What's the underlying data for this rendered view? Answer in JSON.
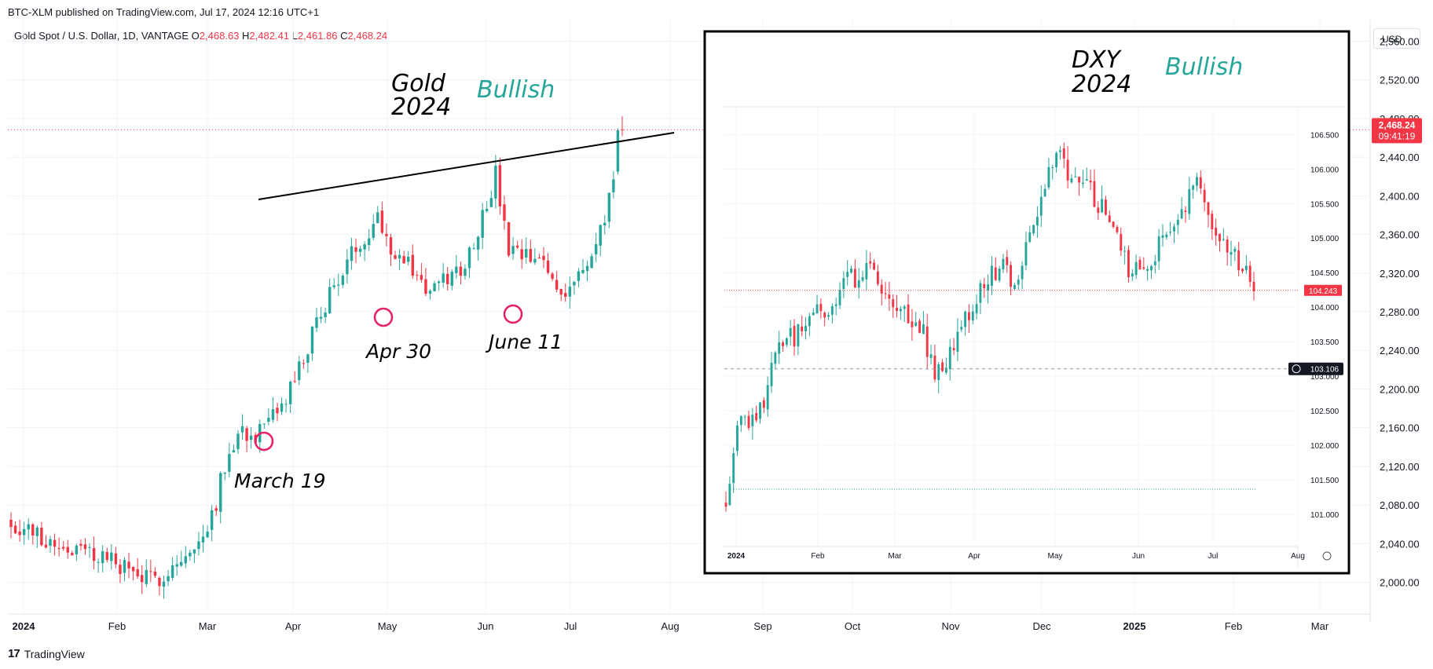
{
  "publisher_line": "BTC-XLM published on TradingView.com, Jul 17, 2024 12:16 UTC+1",
  "header": {
    "symbol": "Gold Spot / U.S. Dollar, 1D, VANTAGE",
    "o_label": "O",
    "o_value": "2,468.63",
    "h_label": "H",
    "h_value": "2,482.41",
    "l_label": "L",
    "l_value": "2,461.86",
    "c_label": "C",
    "c_value": "2,468.24"
  },
  "currency_button": "USD",
  "footer": {
    "brand": "TradingView",
    "mark": "17"
  },
  "colors": {
    "up": "#26a69a",
    "down": "#f23645",
    "teal_text": "#26a69a",
    "circle": "#e91e63",
    "price_tag": "#f23645",
    "dark_tag": "#131722"
  },
  "chart_data": [
    {
      "type": "candlestick",
      "instrument": "Gold Spot / U.S. Dollar",
      "x_axis_ticks": [
        "2024",
        "Feb",
        "Mar",
        "Apr",
        "May",
        "Jun",
        "Jul",
        "Aug",
        "Sep",
        "Oct",
        "Nov",
        "Dec",
        "2025",
        "Feb",
        "Mar"
      ],
      "y_axis_ticks": [
        "2,560.00",
        "2,520.00",
        "2,480.00",
        "2,440.00",
        "2,400.00",
        "2,360.00",
        "2,320.00",
        "2,280.00",
        "2,240.00",
        "2,200.00",
        "2,160.00",
        "2,120.00",
        "2,080.00",
        "2,040.00",
        "2,000.00"
      ],
      "ylim": [
        1985,
        2575
      ],
      "last_price": "2,468.24",
      "countdown": "09:41:19",
      "x": [
        "2024-01",
        "2024-02",
        "2024-03",
        "2024-03-19",
        "2024-04",
        "2024-04-30",
        "2024-05",
        "2024-06",
        "2024-06-11",
        "2024-07",
        "2024-07-17"
      ],
      "close": [
        2063,
        2040,
        2082,
        2157,
        2250,
        2298,
        2330,
        2327,
        2305,
        2330,
        2468
      ],
      "annotations": {
        "title_line1": "Gold",
        "title_line2": "2024",
        "bias": "Bullish",
        "points": [
          "March 19",
          "Apr 30",
          "June 11"
        ]
      },
      "resistance_line": {
        "from": [
          "2024-03-26",
          2444
        ],
        "to": [
          "2024-08-01",
          2490
        ]
      }
    },
    {
      "type": "candlestick",
      "instrument": "DXY",
      "x_axis_ticks": [
        "2024",
        "Feb",
        "Mar",
        "Apr",
        "May",
        "Jun",
        "Jul",
        "Aug"
      ],
      "y_axis_ticks": [
        "106.500",
        "106.000",
        "105.500",
        "105.000",
        "104.500",
        "104.000",
        "103.500",
        "103.000",
        "102.500",
        "102.000",
        "101.500",
        "101.000"
      ],
      "ylim": [
        100.6,
        106.8
      ],
      "last_price": "104.243",
      "crosshair_price": "103.106",
      "x": [
        "2024-01",
        "2024-02",
        "2024-03",
        "2024-04",
        "2024-04-16",
        "2024-05",
        "2024-06",
        "2024-06-26",
        "2024-07",
        "2024-07-15"
      ],
      "close": [
        101.3,
        103.9,
        104.1,
        103.2,
        106.2,
        105.7,
        104.3,
        105.9,
        104.8,
        104.24
      ],
      "annotations": {
        "title_line1": "DXY",
        "title_line2": "2024",
        "bias": "Bullish"
      }
    }
  ]
}
